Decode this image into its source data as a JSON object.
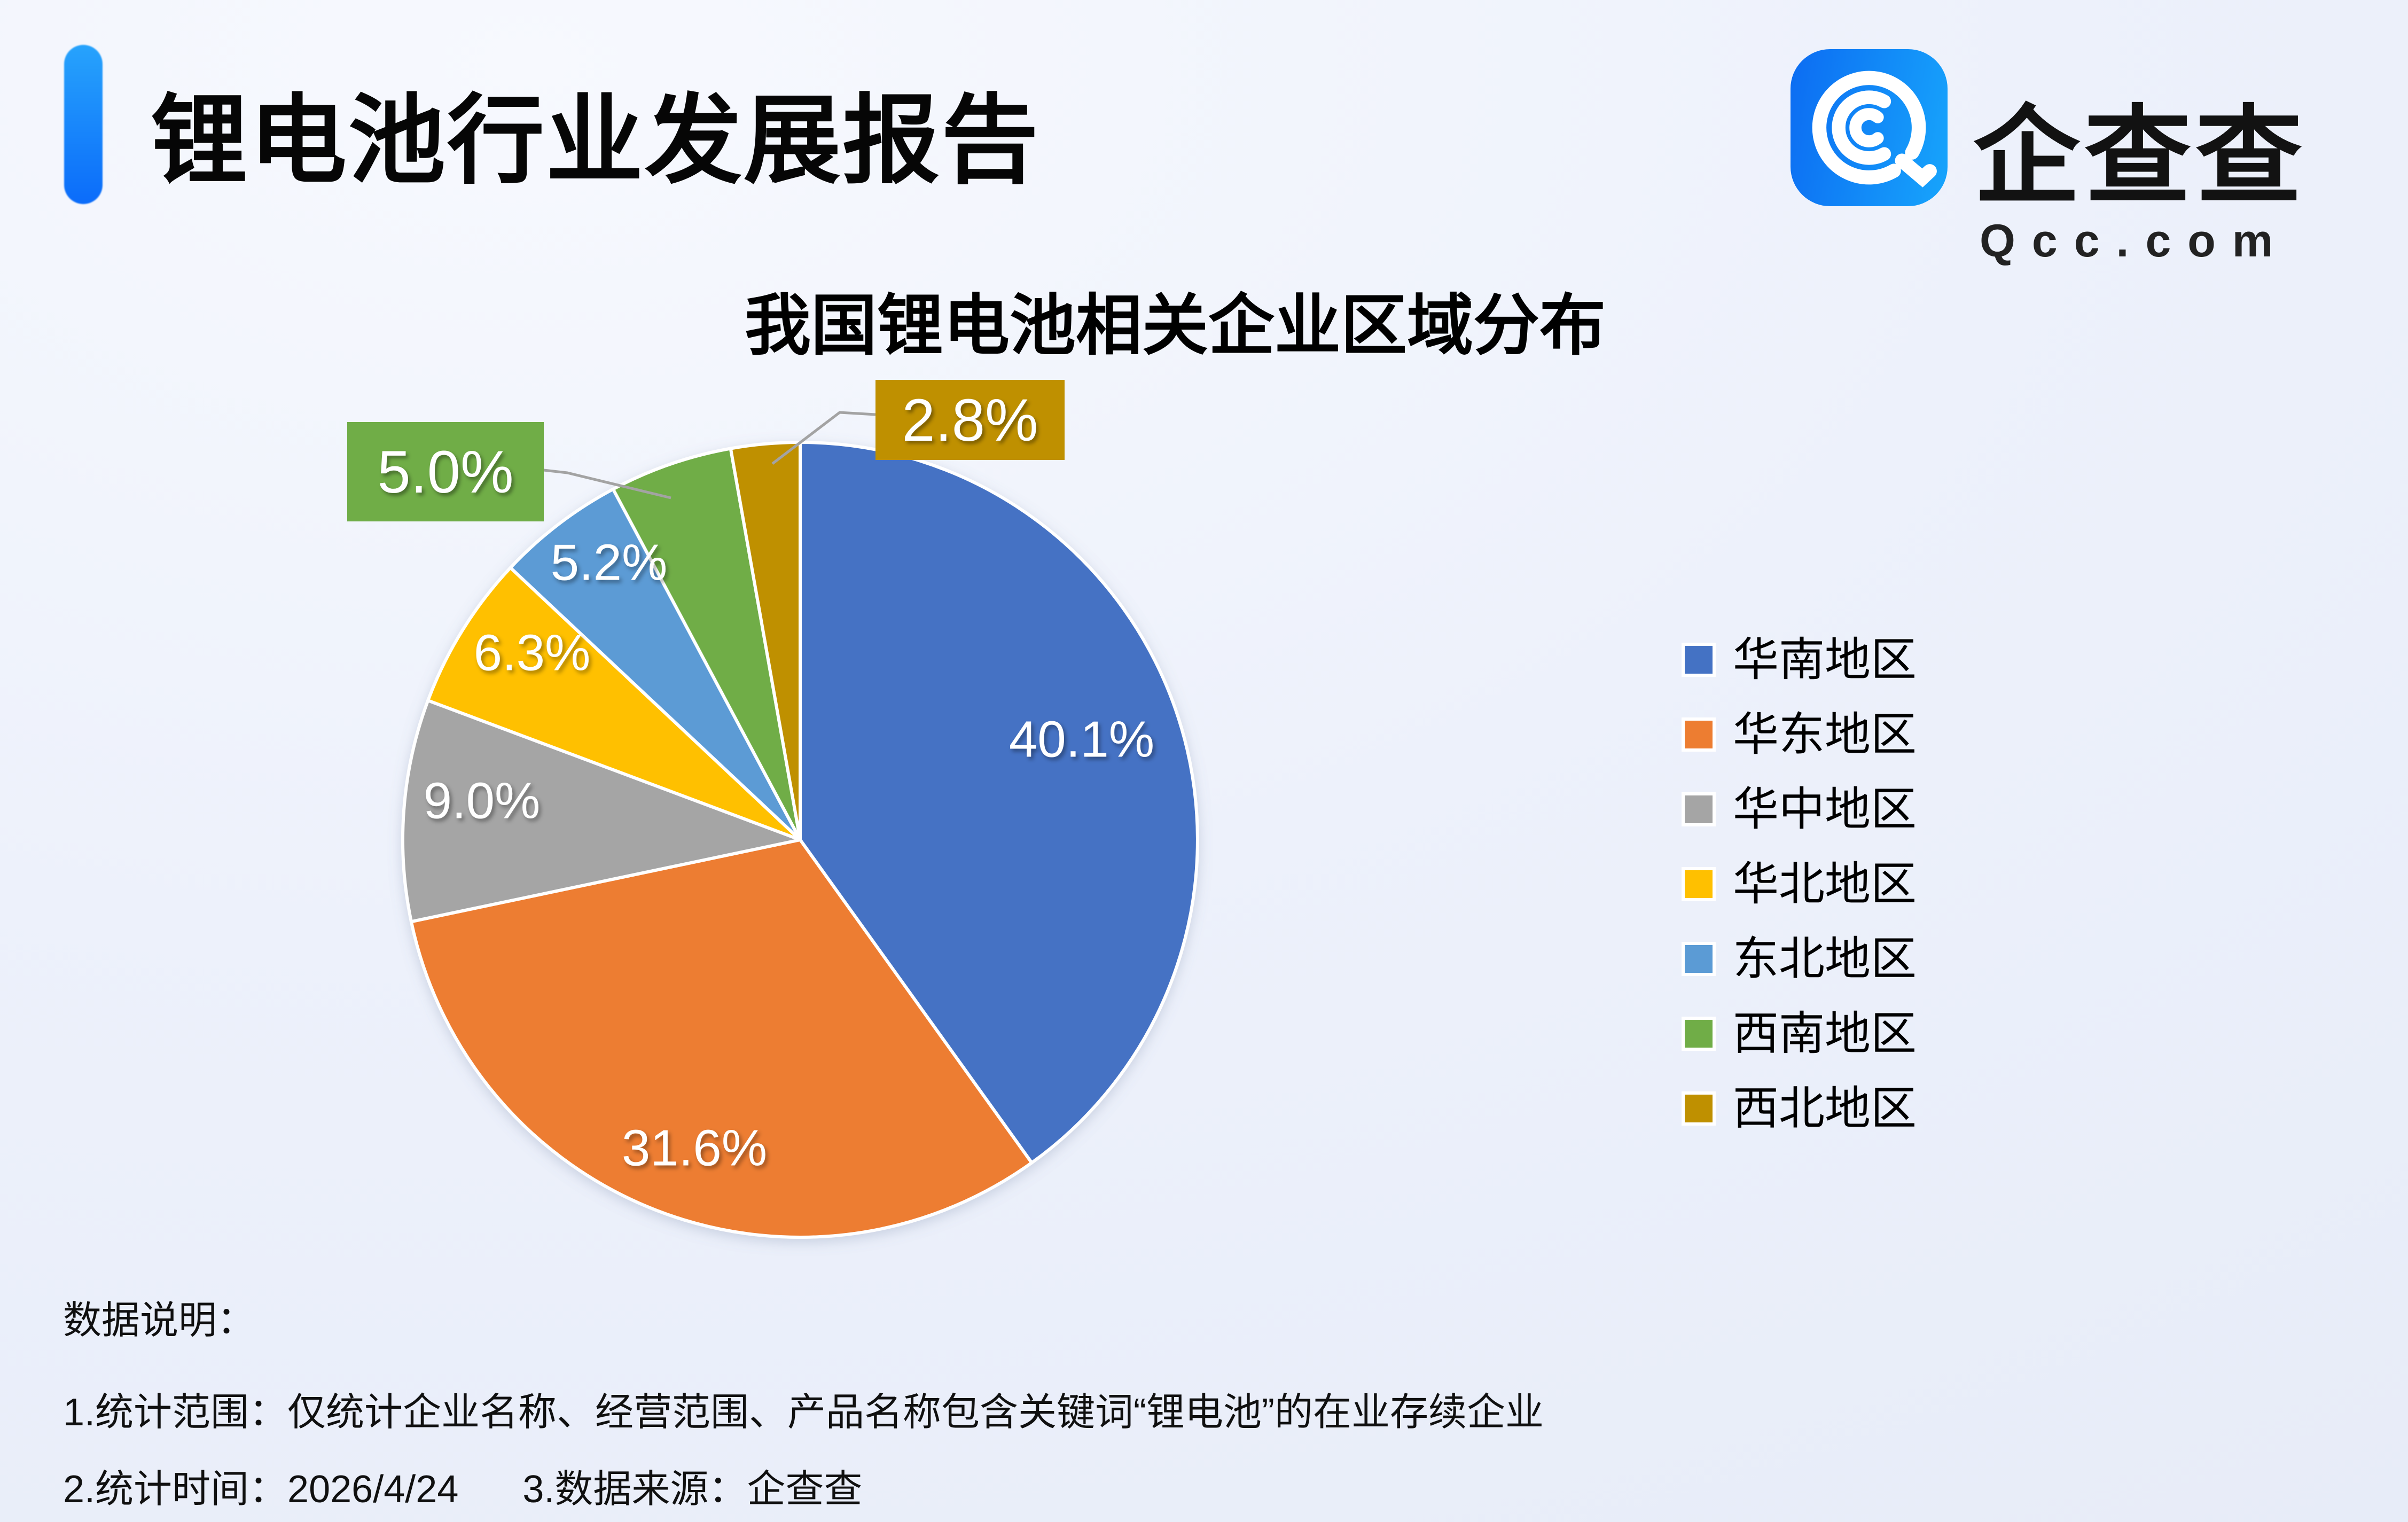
{
  "header": {
    "title": "锂电池行业发展报告"
  },
  "logo": {
    "brand_name": "企查查",
    "domain": "Qcc.com",
    "icon": "qcc-concentric-c-magnifier-icon",
    "icon_color_start": "#0c6cf2",
    "icon_color_end": "#17a5fc"
  },
  "chart": {
    "title": "我国锂电池相关企业区域分布"
  },
  "chart_data": {
    "type": "pie",
    "title": "我国锂电池相关企业区域分布",
    "labels": [
      "华南地区",
      "华东地区",
      "华中地区",
      "华北地区",
      "东北地区",
      "西南地区",
      "西北地区"
    ],
    "values": [
      40.1,
      31.6,
      9.0,
      6.3,
      5.2,
      5.0,
      2.8
    ],
    "colors": [
      "#4472C4",
      "#ED7D31",
      "#A5A5A5",
      "#FFC000",
      "#5B9BD5",
      "#70AD47",
      "#BF9000"
    ],
    "data_label_format": "one_decimal_percent",
    "data_labels": [
      "40.1%",
      "31.6%",
      "9.0%",
      "6.3%",
      "5.2%",
      "5.0%",
      "2.8%"
    ],
    "callout_slices": [
      "西南地区",
      "西北地区"
    ],
    "start_angle_deg": 0,
    "direction": "clockwise",
    "legend_position": "right",
    "slice_border_color": "#ffffff",
    "leader_line_color": "#a3a3a3",
    "label_text_color": "#ffffff"
  },
  "footer": {
    "heading": "数据说明：",
    "note1": "1.统计范围：仅统计企业名称、经营范围、产品名称包含关键词“锂电池”的在业存续企业",
    "note2_time": "2.统计时间：2026/4/24",
    "note2_source": "3.数据来源：企查查"
  }
}
